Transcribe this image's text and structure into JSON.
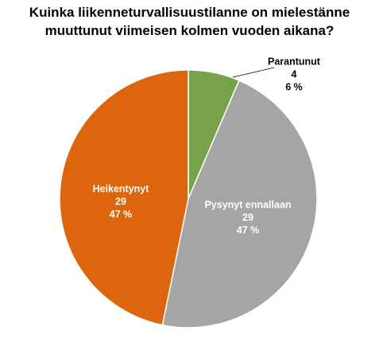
{
  "chart_data": {
    "type": "pie",
    "title": "Kuinka liikenneturvallisuustilanne on mielestänne muuttunut viimeisen kolmen vuoden aikana?",
    "categories": [
      "Parantunut",
      "Pysynyt ennallaan",
      "Heikentynyt"
    ],
    "values": [
      4,
      29,
      29
    ],
    "percents": [
      {
        "value": 6,
        "label": "6 %"
      },
      {
        "value": 47,
        "label": "47 %"
      },
      {
        "value": 47,
        "label": "47 %"
      }
    ],
    "colors": [
      "#77a14a",
      "#a5a5a5",
      "#dc650e"
    ]
  }
}
